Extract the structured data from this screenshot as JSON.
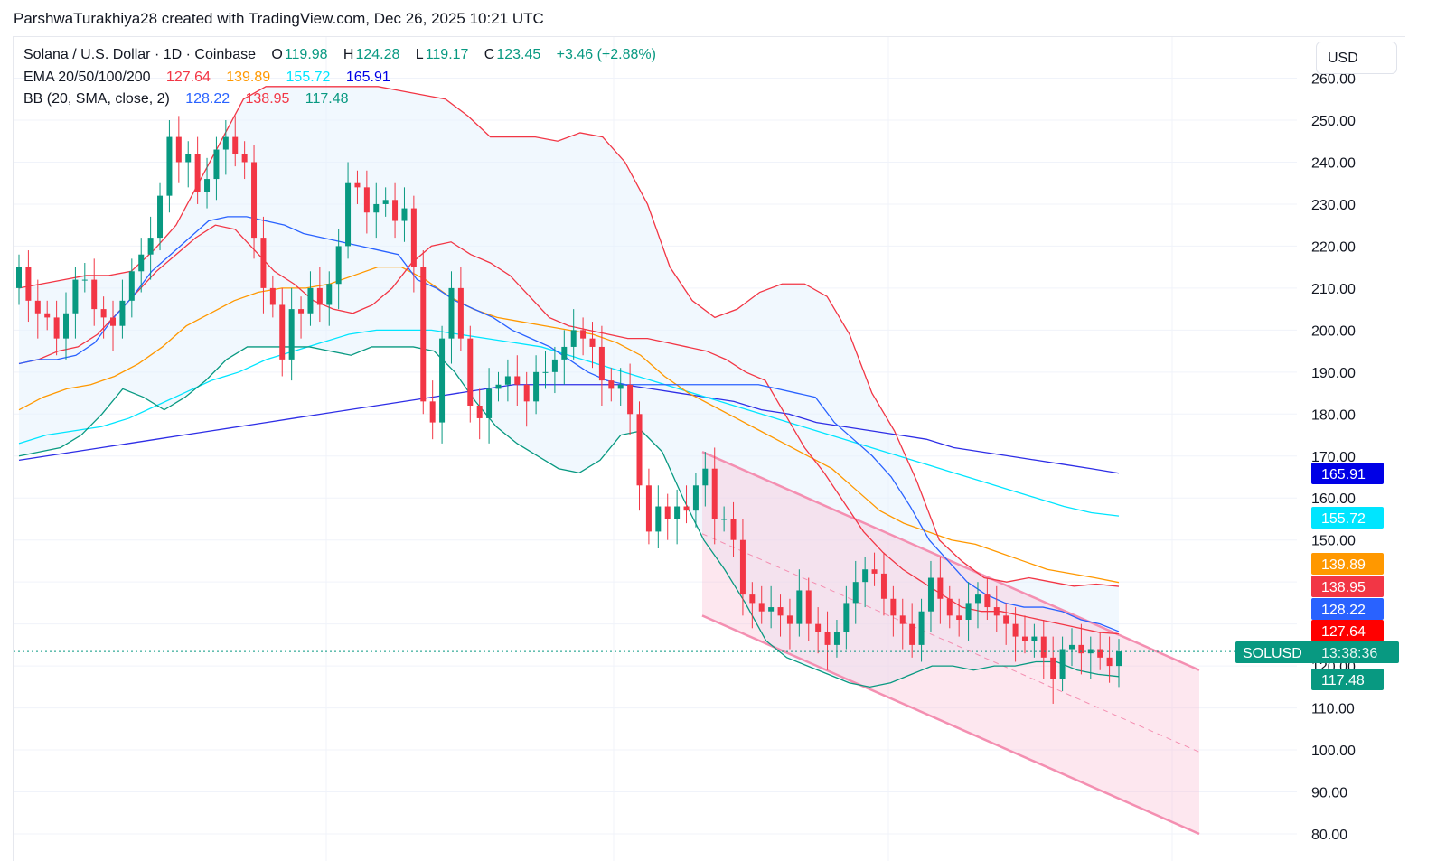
{
  "header": {
    "credit": "ParshwaTurakhiya28 created with TradingView.com, Dec 26, 2025 10:21 UTC"
  },
  "legend": {
    "symbol": "Solana / U.S. Dollar · 1D · Coinbase",
    "o_label": "O",
    "o_value": "119.98",
    "h_label": "H",
    "h_value": "124.28",
    "l_label": "L",
    "l_value": "119.17",
    "c_label": "C",
    "c_value": "123.45",
    "change": "+3.46 (+2.88%)",
    "ema_label": "EMA 20/50/100/200",
    "ema20": "127.64",
    "ema50": "139.89",
    "ema100": "155.72",
    "ema200": "165.91",
    "bb_label": "BB (20, SMA, close, 2)",
    "bb_basis": "128.22",
    "bb_upper": "138.95",
    "bb_lower": "117.48"
  },
  "currency": "USD",
  "colors": {
    "up": "#089981",
    "down": "#f23645",
    "ema20": "#f23645",
    "ema50": "#ff9800",
    "ema100": "#00e5ff",
    "ema200": "#2e2ee6",
    "bb_basis": "#2962ff",
    "bb_upper": "#f23645",
    "bb_lower": "#089981",
    "bb_fill": "#e3f2fd",
    "channel": "#f8bbd0"
  },
  "price_tags": [
    {
      "label": "165.91",
      "value": 165.91,
      "color": "#0000e6"
    },
    {
      "label": "155.72",
      "value": 155.72,
      "color": "#00e5ff"
    },
    {
      "label": "139.89",
      "value": 139.89,
      "color": "#ff9800"
    },
    {
      "label": "138.95",
      "value": 138.95,
      "color": "#f23645"
    },
    {
      "label": "128.22",
      "value": 128.22,
      "color": "#2962ff"
    },
    {
      "label": "127.64",
      "value": 127.64,
      "color": "#ff0000"
    },
    {
      "label": "117.48",
      "value": 117.48,
      "color": "#089981"
    }
  ],
  "current_price": {
    "symbol": "SOLUSD",
    "countdown": "13:38:36",
    "value": 123.45
  },
  "chart_data": {
    "type": "candlestick",
    "title": "Solana / U.S. Dollar · 1D · Coinbase",
    "ylim": [
      80,
      260
    ],
    "y_ticks": [
      80,
      90,
      100,
      110,
      120,
      130,
      140,
      150,
      160,
      170,
      180,
      190,
      200,
      210,
      220,
      230,
      240,
      250,
      260
    ],
    "y_tick_labels": [
      "80.00",
      "90.00",
      "100.00",
      "110.00",
      "120.00",
      "130.00",
      "140.00",
      "150.00",
      "160.00",
      "170.00",
      "180.00",
      "190.00",
      "200.00",
      "210.00",
      "220.00",
      "230.00",
      "240.00",
      "250.00",
      "260.00"
    ],
    "grid": true,
    "candles_close": [
      215,
      207,
      204,
      203,
      198,
      204,
      212,
      212,
      205,
      203,
      201,
      207,
      214,
      218,
      222,
      232,
      246,
      240,
      242,
      233,
      236,
      243,
      246,
      242,
      240,
      222,
      210,
      206,
      193,
      205,
      204,
      210,
      206,
      211,
      220,
      235,
      234,
      228,
      230,
      231,
      226,
      229,
      215,
      183,
      178,
      198,
      210,
      198,
      182,
      179,
      186,
      187,
      189,
      187,
      183,
      190,
      190,
      193,
      196,
      200,
      198,
      196,
      188,
      186,
      187,
      180,
      163,
      152,
      158,
      155,
      158,
      157,
      163,
      167,
      155,
      155,
      150,
      137,
      135,
      133,
      134,
      132,
      130,
      138,
      130,
      128,
      125,
      128,
      135,
      140,
      143,
      142,
      136,
      132,
      130,
      125,
      133,
      141,
      136,
      132,
      131,
      135,
      137,
      134,
      132,
      130,
      127,
      126,
      127,
      122,
      117,
      124,
      125,
      123,
      124,
      122,
      120,
      123.45
    ],
    "series": [
      {
        "name": "EMA 20",
        "values": [
          192,
          193,
          195,
          196,
          199,
          204,
          209,
          214,
          218,
          222,
          225,
          224,
          219,
          214,
          211,
          207,
          205,
          204,
          206,
          210,
          216,
          220,
          221,
          218,
          216,
          213,
          208,
          203,
          201,
          200,
          199,
          198,
          198,
          197,
          196,
          195,
          193,
          190,
          188,
          180,
          172,
          166,
          159,
          152,
          147,
          143,
          140,
          137,
          134,
          133,
          133,
          132,
          131,
          130,
          129,
          128,
          127.64
        ]
      },
      {
        "name": "EMA 50",
        "values": [
          181,
          184,
          186,
          187,
          189,
          192,
          196,
          201,
          204,
          207,
          209,
          210,
          210,
          211,
          213,
          215,
          215,
          212,
          208,
          205,
          203,
          202,
          201,
          200,
          199,
          197,
          194,
          189,
          185,
          182,
          179,
          176,
          173,
          170,
          167,
          162,
          157,
          154,
          152,
          150,
          149,
          147,
          145,
          143,
          142,
          141,
          139.89
        ]
      },
      {
        "name": "EMA 100",
        "values": [
          173,
          175,
          176,
          177,
          179,
          182,
          185,
          188,
          190,
          193,
          195,
          197,
          199,
          200,
          200,
          200,
          199,
          198,
          197,
          196,
          194,
          192,
          190,
          188,
          186,
          184,
          182,
          180,
          178,
          176,
          174,
          172,
          170,
          168,
          166,
          164,
          162,
          160,
          158,
          156.5,
          155.72
        ]
      },
      {
        "name": "EMA 200",
        "values": [
          169,
          170,
          171,
          172,
          173,
          174,
          175,
          176,
          177,
          178,
          179,
          180,
          181,
          182,
          183,
          184,
          185,
          186,
          187,
          187,
          187,
          187,
          187,
          186,
          185,
          184,
          183,
          181,
          180,
          178,
          177,
          176,
          175,
          174,
          172,
          171,
          170,
          169,
          168,
          167,
          165.91
        ]
      },
      {
        "name": "BB basis",
        "values": [
          192,
          193,
          193,
          194,
          197,
          203,
          208,
          214,
          218,
          222,
          226,
          227,
          227,
          226,
          225,
          223,
          222,
          221,
          220,
          219,
          218,
          212,
          210,
          207,
          205,
          203,
          200,
          198,
          196,
          193,
          190,
          188,
          187,
          187,
          187,
          187,
          187,
          187,
          187,
          187,
          186,
          185,
          184,
          178,
          174,
          170,
          165,
          158,
          150,
          145,
          140,
          137,
          135,
          134,
          134,
          133,
          131,
          130,
          128.22
        ]
      },
      {
        "name": "BB upper",
        "values": [
          210,
          211,
          212,
          213,
          213,
          214,
          219,
          225,
          235,
          245,
          255,
          258,
          258,
          258,
          258,
          258,
          258,
          257,
          256,
          255,
          251,
          246,
          246,
          246,
          245,
          247,
          246,
          240,
          230,
          215,
          207,
          203,
          205,
          209,
          211,
          211,
          208,
          199,
          185,
          176,
          164,
          150,
          145,
          141,
          140,
          141,
          140,
          139,
          139.5,
          138.95
        ]
      },
      {
        "name": "BB lower",
        "values": [
          170,
          171,
          172,
          175,
          180,
          186,
          184,
          181,
          184,
          188,
          193,
          196,
          196,
          196,
          196,
          195,
          194,
          196,
          196,
          196,
          195,
          190,
          183,
          177,
          173,
          170,
          167,
          166,
          169,
          175,
          176,
          171,
          160,
          150,
          143,
          135,
          126,
          122,
          120,
          118,
          116,
          115,
          116,
          118,
          120,
          120,
          119,
          120,
          120,
          121,
          121,
          119,
          118,
          117.48
        ]
      }
    ],
    "channel": {
      "upper_start": [
        170,
        170
      ],
      "upper_end": [
        120,
        120
      ]
    },
    "legend_position": "top-left"
  }
}
